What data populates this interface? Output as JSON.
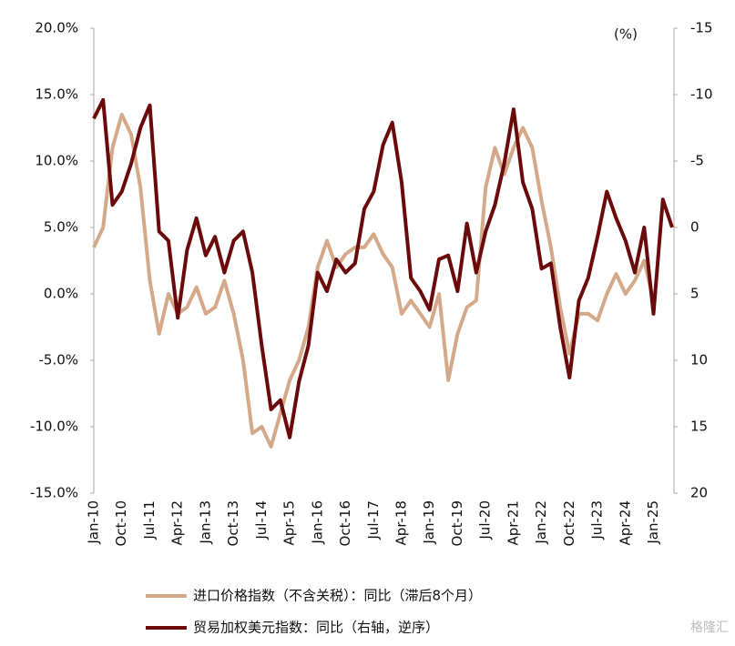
{
  "chart_data": {
    "type": "line",
    "categories": [
      "Jan-10",
      null,
      null,
      "Oct-10",
      null,
      null,
      "Jul-11",
      null,
      null,
      "Apr-12",
      null,
      null,
      "Jan-13",
      null,
      null,
      "Oct-13",
      null,
      null,
      "Jul-14",
      null,
      null,
      "Apr-15",
      null,
      null,
      "Jan-16",
      null,
      null,
      "Oct-16",
      null,
      null,
      "Jul-17",
      null,
      null,
      "Apr-18",
      null,
      null,
      "Jan-19",
      null,
      null,
      "Oct-19",
      null,
      null,
      "Jul-20",
      null,
      null,
      "Apr-21",
      null,
      null,
      "Jan-22",
      null,
      null,
      "Oct-22",
      null,
      null,
      "Jul-23",
      null,
      null,
      "Apr-24",
      null,
      null,
      "Jan-25",
      null,
      null
    ],
    "series": [
      {
        "name": "进口价格指数（不含关税）：同比（滞后8个月）",
        "color": "#d4a98a",
        "axis": "y",
        "values": [
          3.5,
          5,
          11,
          13.5,
          12,
          8,
          1,
          -3,
          0,
          -1.5,
          -1,
          0.5,
          -1.5,
          -1,
          1,
          -1.5,
          -5,
          -10.5,
          -10,
          -11.5,
          -9,
          -6.5,
          -5,
          -2.5,
          2,
          4,
          2,
          3,
          3.5,
          3.5,
          4.5,
          3,
          2,
          -1.5,
          -0.5,
          -1.5,
          -2.5,
          0,
          -6.5,
          -3,
          -1,
          -0.5,
          8,
          11,
          9,
          11,
          12.5,
          11,
          7,
          3.5,
          -1,
          -4.5,
          -1.5,
          -1.5,
          -2,
          0,
          1.5,
          0,
          1,
          2.5,
          -0.5,
          null,
          null
        ]
      },
      {
        "name": "贸易加权美元指数：同比（右轴，逆序）",
        "color": "#6b0a0a",
        "axis": "y2",
        "values": [
          -8.2,
          -9.6,
          -1.7,
          -2.7,
          -4.8,
          -7.5,
          -9.2,
          0.3,
          1.0,
          6.8,
          1.7,
          -0.7,
          2.1,
          0.7,
          3.4,
          1.0,
          0.3,
          3.4,
          8.9,
          13.7,
          13.0,
          15.8,
          11.6,
          8.9,
          3.4,
          4.8,
          2.4,
          3.4,
          2.7,
          -1.4,
          -2.7,
          -6.2,
          -7.9,
          -3.4,
          3.8,
          4.8,
          6.2,
          2.4,
          2.1,
          4.8,
          -0.3,
          3.4,
          0.3,
          -1.7,
          -4.8,
          -8.9,
          -3.4,
          -1.4,
          3.1,
          2.7,
          7.5,
          11.3,
          5.5,
          3.8,
          0.7,
          -2.7,
          -0.7,
          1.0,
          3.4,
          0,
          6.5,
          -2.1,
          0
        ]
      }
    ],
    "ylim": [
      -15,
      20
    ],
    "yticks": [
      {
        "value": -15,
        "label": "-15.0%"
      },
      {
        "value": -10,
        "label": "-10.0%"
      },
      {
        "value": -5,
        "label": "-5.0%"
      },
      {
        "value": 0,
        "label": "0.0%"
      },
      {
        "value": 5,
        "label": "5.0%"
      },
      {
        "value": 10,
        "label": "10.0%"
      },
      {
        "value": 15,
        "label": "15.0%"
      },
      {
        "value": 20,
        "label": "20.0%"
      }
    ],
    "y2lim": [
      20,
      -15
    ],
    "y2ticks": [
      -15,
      -10,
      -5,
      0,
      5,
      10,
      15,
      20
    ],
    "y2_label": "(%)",
    "grid": false,
    "watermark": "格隆汇"
  }
}
